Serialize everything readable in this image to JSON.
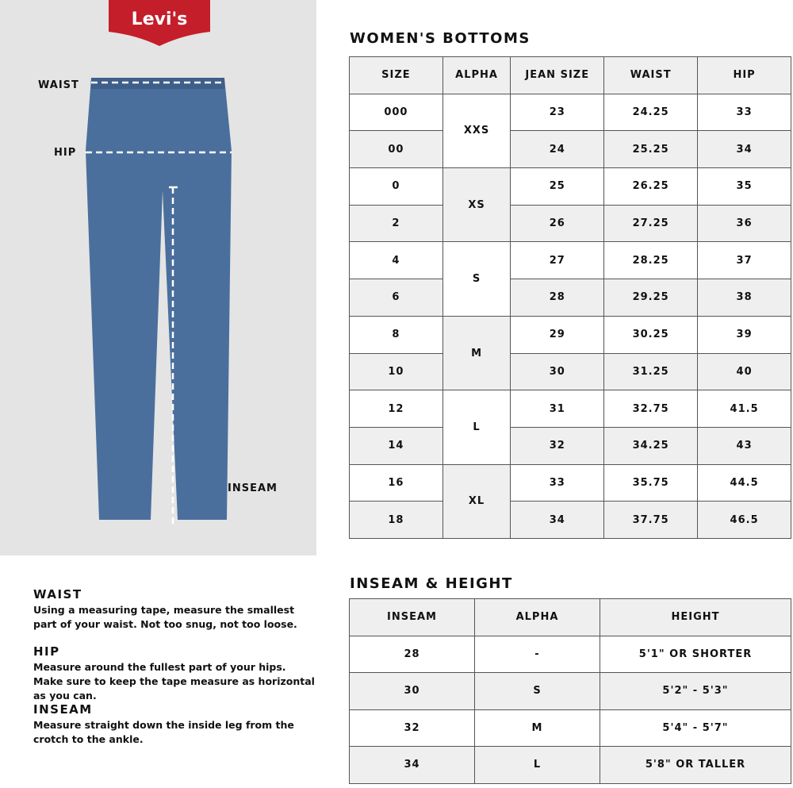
{
  "logo": {
    "text": "Levi's",
    "color": "#c41e2a"
  },
  "diagram": {
    "waist": "WAIST",
    "hip": "HIP",
    "inseam": "INSEAM"
  },
  "womens": {
    "title": "WOMEN'S BOTTOMS",
    "headers": [
      "SIZE",
      "ALPHA",
      "JEAN SIZE",
      "WAIST",
      "HIP"
    ],
    "rows": [
      [
        "000",
        "XXS",
        "23",
        "24.25",
        "33"
      ],
      [
        "00",
        "",
        "24",
        "25.25",
        "34"
      ],
      [
        "0",
        "XS",
        "25",
        "26.25",
        "35"
      ],
      [
        "2",
        "",
        "26",
        "27.25",
        "36"
      ],
      [
        "4",
        "S",
        "27",
        "28.25",
        "37"
      ],
      [
        "6",
        "",
        "28",
        "29.25",
        "38"
      ],
      [
        "8",
        "M",
        "29",
        "30.25",
        "39"
      ],
      [
        "10",
        "",
        "30",
        "31.25",
        "40"
      ],
      [
        "12",
        "L",
        "31",
        "32.75",
        "41.5"
      ],
      [
        "14",
        "",
        "32",
        "34.25",
        "43"
      ],
      [
        "16",
        "XL",
        "33",
        "35.75",
        "44.5"
      ],
      [
        "18",
        "",
        "34",
        "37.75",
        "46.5"
      ]
    ]
  },
  "inseam": {
    "title": "INSEAM & HEIGHT",
    "headers": [
      "INSEAM",
      "ALPHA",
      "HEIGHT"
    ],
    "rows": [
      [
        "28",
        "-",
        "5'1\" OR SHORTER"
      ],
      [
        "30",
        "S",
        "5'2\" - 5'3\""
      ],
      [
        "32",
        "M",
        "5'4\" - 5'7\""
      ],
      [
        "34",
        "L",
        "5'8\" OR TALLER"
      ]
    ]
  },
  "instructions": [
    {
      "title": "WAIST",
      "text": "Using a measuring tape, measure the smallest part of your waist. Not too snug, not too loose."
    },
    {
      "title": "HIP",
      "text": "Measure around the fullest part of your hips. Make sure to keep the tape measure as horizontal as you can."
    },
    {
      "title": "INSEAM",
      "text": "Measure straight down the inside leg from the crotch to the ankle."
    }
  ]
}
